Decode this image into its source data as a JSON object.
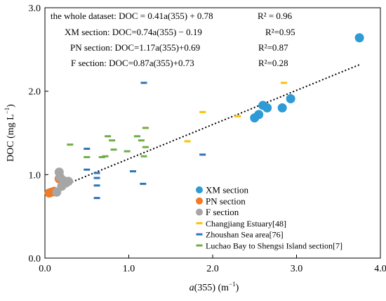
{
  "chart_data": {
    "type": "scatter",
    "xlabel": "a(355) (m⁻¹)",
    "xlabel_italic": "a",
    "xlabel_rest": "(355) (m",
    "xlabel_sup": "−1",
    "ylabel": "DOC (mg L⁻¹)",
    "ylabel_main": "DOC (mg L",
    "ylabel_sup": "−1",
    "xlim": [
      0.0,
      4.0
    ],
    "ylim": [
      0.0,
      3.0
    ],
    "x_ticks": [
      "0.0",
      "1.0",
      "2.0",
      "3.0",
      "4.0"
    ],
    "x_tick_values": [
      0,
      1,
      2,
      3,
      4
    ],
    "y_ticks": [
      "0.0",
      "1.0",
      "2.0",
      "3.0"
    ],
    "y_tick_values": [
      0,
      1,
      2,
      3
    ],
    "grid": false,
    "legend_placement": "bottom-right",
    "equations": [
      {
        "text": "the whole dataset: DOC = 0.41a(355) + 0.78",
        "r2": "R² = 0.96"
      },
      {
        "text": "XM section: DOC=0.74a(355) − 0.19",
        "r2": "R²=0.95"
      },
      {
        "text": "PN section: DOC=1.17a(355)+0.69",
        "r2": "R²=0.87"
      },
      {
        "text": "F section: DOC=0.87a(355)+0.73",
        "r2": "R²=0.28"
      }
    ],
    "trendline": {
      "slope": 0.41,
      "intercept": 0.78,
      "x_range": [
        0.05,
        3.75
      ],
      "color": "#000000"
    },
    "series": [
      {
        "name": "XM section",
        "marker": "circle",
        "color": "#2e9ad6",
        "points": [
          [
            2.5,
            1.68
          ],
          [
            2.55,
            1.72
          ],
          [
            2.6,
            1.83
          ],
          [
            2.65,
            1.8
          ],
          [
            2.83,
            1.8
          ],
          [
            2.93,
            1.91
          ],
          [
            3.75,
            2.64
          ]
        ]
      },
      {
        "name": "PN section",
        "marker": "circle",
        "color": "#f07a28",
        "points": [
          [
            0.05,
            0.78
          ],
          [
            0.08,
            0.79
          ],
          [
            0.11,
            0.8
          ],
          [
            0.17,
            0.95
          ]
        ]
      },
      {
        "name": "F section",
        "marker": "circle",
        "color": "#a6a6a6",
        "points": [
          [
            0.17,
            1.03
          ],
          [
            0.18,
            0.97
          ],
          [
            0.22,
            0.93
          ],
          [
            0.25,
            0.9
          ],
          [
            0.2,
            0.86
          ],
          [
            0.28,
            0.92
          ],
          [
            0.14,
            0.79
          ]
        ]
      },
      {
        "name": "Changjiang Estuary[48]",
        "marker": "dash",
        "color": "#ffc000",
        "points": [
          [
            1.7,
            1.4
          ],
          [
            1.88,
            1.75
          ],
          [
            2.3,
            1.7
          ],
          [
            2.85,
            2.1
          ]
        ]
      },
      {
        "name": "Zhoushan Sea area[76]",
        "marker": "dash",
        "color": "#2e75b6",
        "points": [
          [
            0.5,
            1.31
          ],
          [
            0.5,
            1.06
          ],
          [
            0.62,
            1.02
          ],
          [
            0.62,
            0.96
          ],
          [
            0.62,
            0.87
          ],
          [
            0.62,
            0.72
          ],
          [
            1.05,
            1.04
          ],
          [
            1.17,
            0.89
          ],
          [
            1.18,
            2.1
          ],
          [
            1.88,
            1.24
          ]
        ]
      },
      {
        "name": "Luchao Bay to Shengsi Island section[7]",
        "marker": "dash",
        "color": "#70ad47",
        "points": [
          [
            0.3,
            1.36
          ],
          [
            0.5,
            1.21
          ],
          [
            0.68,
            1.21
          ],
          [
            0.72,
            1.22
          ],
          [
            0.75,
            1.46
          ],
          [
            0.8,
            1.41
          ],
          [
            0.82,
            1.3
          ],
          [
            0.98,
            1.28
          ],
          [
            1.1,
            1.46
          ],
          [
            1.15,
            1.41
          ],
          [
            1.18,
            1.22
          ],
          [
            1.2,
            1.56
          ],
          [
            1.2,
            1.33
          ]
        ]
      }
    ]
  }
}
